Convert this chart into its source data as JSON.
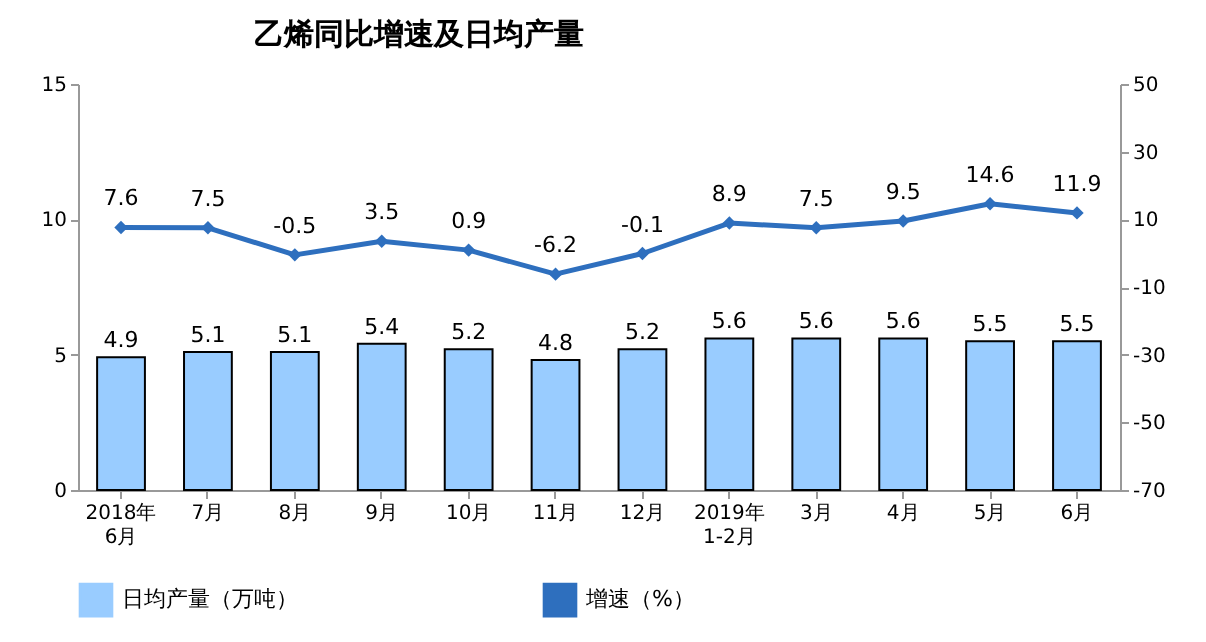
{
  "chart_data": {
    "type": "bar",
    "title": "乙烯同比增速及日均产量",
    "categories": [
      "2018年\n6月",
      "7月",
      "8月",
      "9月",
      "10月",
      "11月",
      "12月",
      "2019年\n1-2月",
      "3月",
      "4月",
      "5月",
      "6月"
    ],
    "series": [
      {
        "name": "日均产量（万吨）",
        "color": "#99ccff",
        "values": [
          4.9,
          5.1,
          5.1,
          5.4,
          5.2,
          4.8,
          5.2,
          5.6,
          5.6,
          5.6,
          5.5,
          5.5
        ]
      },
      {
        "name": "增速（%）",
        "type": "line",
        "axis": "y2",
        "color": "#2e6fbe",
        "marker": "diamond",
        "values": [
          7.6,
          7.5,
          -0.5,
          3.5,
          0.9,
          -6.2,
          -0.1,
          8.9,
          7.5,
          9.5,
          14.6,
          11.9
        ]
      }
    ],
    "ylim": [
      0,
      15
    ],
    "yticks": [
      0,
      5,
      10,
      15
    ],
    "y2lim": [
      -70,
      50
    ],
    "y2ticks": [
      -70,
      -50,
      -30,
      -10,
      10,
      30,
      50
    ],
    "data_labels": true,
    "grid": false,
    "legend": "bottom"
  }
}
